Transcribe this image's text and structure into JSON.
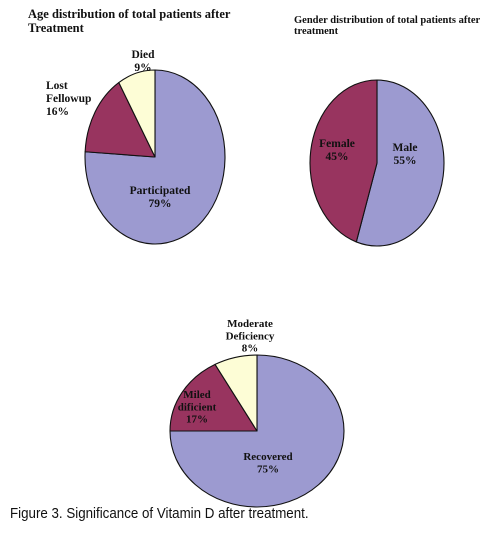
{
  "colors": {
    "periwinkle": "#9c9ad0",
    "maroon": "#98345f",
    "cream": "#fdfdd6",
    "outline": "#111111"
  },
  "chart_data": [
    {
      "type": "pie",
      "title": "Age distribution of total patients after Treatment",
      "categories": [
        "Participated",
        "Lost Fellowup",
        "Died"
      ],
      "values": [
        79,
        16,
        9
      ],
      "value_labels": [
        "79%",
        "16%",
        "9%"
      ]
    },
    {
      "type": "pie",
      "title": "Gender distribution of total patients after treatment",
      "categories": [
        "Male",
        "Female"
      ],
      "values": [
        55,
        45
      ],
      "value_labels": [
        "55%",
        "45%"
      ]
    },
    {
      "type": "pie",
      "title": "",
      "categories": [
        "Recovered",
        "Miled dificient",
        "Moderate Deficiency"
      ],
      "values": [
        75,
        17,
        8
      ],
      "value_labels": [
        "75%",
        "17%",
        "8%"
      ]
    }
  ],
  "caption": "Figure 3. Significance of Vitamin D after treatment."
}
